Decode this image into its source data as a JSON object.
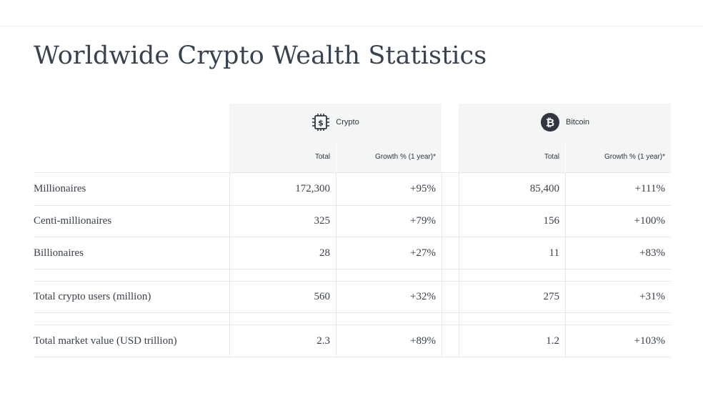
{
  "title": "Worldwide Crypto Wealth Statistics",
  "groups": {
    "crypto": {
      "label": "Crypto",
      "icon": "crypto-chip-icon"
    },
    "bitcoin": {
      "label": "Bitcoin",
      "icon": "bitcoin-icon"
    }
  },
  "subheaders": {
    "total": "Total",
    "growth": "Growth % (1 year)*"
  },
  "rows": [
    {
      "label": "Millionaires",
      "crypto_total": "172,300",
      "crypto_growth": "+95%",
      "btc_total": "85,400",
      "btc_growth": "+111%"
    },
    {
      "label": "Centi-millionaires",
      "crypto_total": "325",
      "crypto_growth": "+79%",
      "btc_total": "156",
      "btc_growth": "+100%"
    },
    {
      "label": "Billionaires",
      "crypto_total": "28",
      "crypto_growth": "+27%",
      "btc_total": "11",
      "btc_growth": "+83%"
    },
    {
      "label": "Total crypto users (million)",
      "crypto_total": "560",
      "crypto_growth": "+32%",
      "btc_total": "275",
      "btc_growth": "+31%"
    },
    {
      "label": "Total market value (USD trillion)",
      "crypto_total": "2.3",
      "crypto_growth": "+89%",
      "btc_total": "1.2",
      "btc_growth": "+103%"
    }
  ]
}
